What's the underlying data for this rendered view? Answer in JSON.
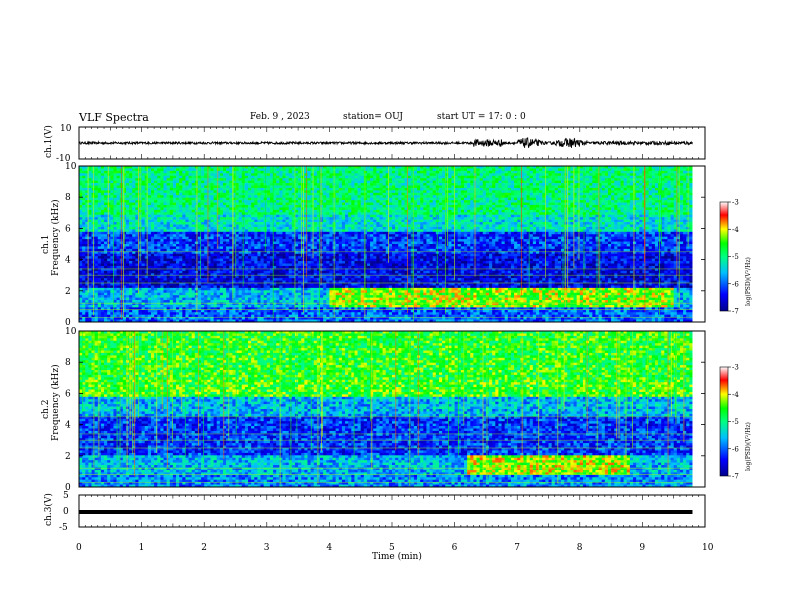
{
  "header": {
    "title": "VLF Spectra",
    "date": "Feb. 9  , 2023",
    "station": "station= OUJ",
    "start": "start  UT  =   17: 0  : 0"
  },
  "chart_data": [
    {
      "type": "line",
      "panel": "waveform-ch1",
      "ylabel": "ch.1(V)",
      "ylim": [
        -10,
        10
      ],
      "yticks": [
        "10",
        "-10"
      ],
      "xlim": [
        0,
        10
      ],
      "note_series": "broadband waveform ~ +/-1 V, larger bursts near 6.5 and 7-8 min"
    },
    {
      "type": "heatmap",
      "panel": "spectrogram-ch1",
      "ylabel": "ch.1\nFrequency  (kHz)",
      "ylabel_lines": [
        "ch.1",
        "Frequency  (kHz)"
      ],
      "ylim": [
        0,
        10
      ],
      "yticks": [
        "0",
        "2",
        "4",
        "6",
        "8",
        "10"
      ],
      "xlim": [
        0,
        9.8
      ],
      "colorbar": {
        "label": "log(PSD)(V²/Hz)",
        "range": [
          -7,
          -3
        ],
        "ticks": [
          "-3",
          "-4",
          "-5",
          "-6",
          "-7"
        ]
      }
    },
    {
      "type": "heatmap",
      "panel": "spectrogram-ch2",
      "ylabel_lines": [
        "ch.2",
        "Frequency  (kHz)"
      ],
      "ylim": [
        0,
        10
      ],
      "yticks": [
        "0",
        "2",
        "4",
        "6",
        "8",
        "10"
      ],
      "xlim": [
        0,
        9.8
      ],
      "colorbar": {
        "label": "log(PSD)(V²/Hz)",
        "range": [
          -7,
          -3
        ],
        "ticks": [
          "-3",
          "-4",
          "-5",
          "-6",
          "-7"
        ]
      }
    },
    {
      "type": "line",
      "panel": "waveform-ch3",
      "ylabel": "ch.3(V)",
      "ylim": [
        -5,
        5
      ],
      "yticks": [
        "5",
        "0",
        "-5"
      ],
      "xlim": [
        0,
        10
      ],
      "series": [
        {
          "x": [
            0,
            9.8
          ],
          "y": [
            0,
            0
          ]
        }
      ]
    }
  ],
  "x_axis": {
    "label": "Time  (min)",
    "ticks": [
      "0",
      "1",
      "2",
      "3",
      "4",
      "5",
      "6",
      "7",
      "8",
      "9",
      "10"
    ],
    "range": [
      0,
      10
    ]
  }
}
